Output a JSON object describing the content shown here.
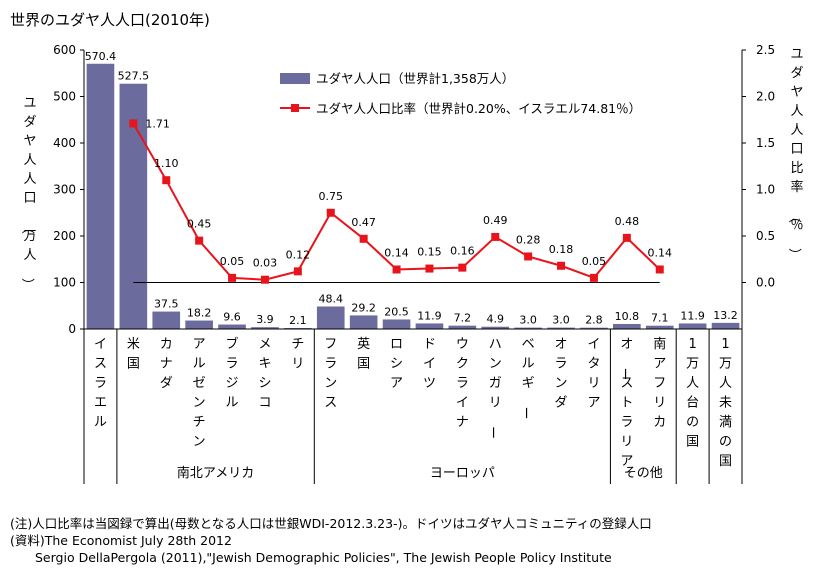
{
  "chart_data": {
    "type": "bar",
    "title": "世界のユダヤ人人口(2010年)",
    "ylabel_left": "ユダヤ人人口（万人）",
    "ylabel_right": "ユダヤ人人口比率（％）",
    "ylim_left": [
      0,
      600
    ],
    "yticks_left": [
      "0",
      "100",
      "200",
      "300",
      "400",
      "500",
      "600"
    ],
    "ylim_right": [
      -0.5,
      2.5
    ],
    "yticks_right": [
      "0.0",
      "0.5",
      "1.0",
      "1.5",
      "2.0",
      "2.5"
    ],
    "categories": [
      "イスラエル",
      "米国",
      "カナダ",
      "アルゼンチン",
      "ブラジル",
      "メキシコ",
      "チリ",
      "フランス",
      "英国",
      "ロシア",
      "ドイツ",
      "ウクライナ",
      "ハンガリー",
      "ベルギー",
      "オランダ",
      "イタリア",
      "オーストラリア",
      "南アフリカ",
      "1万人台の国",
      "1万人未満の国"
    ],
    "groups": [
      {
        "label": "",
        "from": 0,
        "to": 0
      },
      {
        "label": "南北アメリカ",
        "from": 1,
        "to": 6
      },
      {
        "label": "ヨーロッパ",
        "from": 7,
        "to": 15
      },
      {
        "label": "その他",
        "from": 16,
        "to": 17
      },
      {
        "label": "",
        "from": 18,
        "to": 18
      },
      {
        "label": "",
        "from": 19,
        "to": 19
      }
    ],
    "series": [
      {
        "name": "ユダヤ人人口（世界計1,358万人）",
        "type": "bar",
        "axis": "left",
        "color": "#6b6b9e",
        "values": [
          570.4,
          527.5,
          37.5,
          18.2,
          9.6,
          3.9,
          2.1,
          48.4,
          29.2,
          20.5,
          11.9,
          7.2,
          4.9,
          3.0,
          3.0,
          2.8,
          10.8,
          7.1,
          11.9,
          13.2
        ],
        "labels": [
          "570.4",
          "527.5",
          "37.5",
          "18.2",
          "9.6",
          "3.9",
          "2.1",
          "48.4",
          "29.2",
          "20.5",
          "11.9",
          "7.2",
          "4.9",
          "3.0",
          "3.0",
          "2.8",
          "10.8",
          "7.1",
          "11.9",
          "13.2"
        ]
      },
      {
        "name": "ユダヤ人人口比率（世界計0.20%、イスラエル74.81％）",
        "type": "line",
        "axis": "right",
        "color": "#e8141b",
        "values": [
          null,
          1.71,
          1.1,
          0.45,
          0.05,
          0.03,
          0.12,
          0.75,
          0.47,
          0.14,
          0.15,
          0.16,
          0.49,
          0.28,
          0.18,
          0.05,
          0.48,
          0.14,
          null,
          null
        ],
        "labels": [
          "",
          "1.71",
          "1.10",
          "0.45",
          "0.05",
          "0.03",
          "0.12",
          "0.75",
          "0.47",
          "0.14",
          "0.15",
          "0.16",
          "0.49",
          "0.28",
          "0.18",
          "0.05",
          "0.48",
          "0.14",
          "",
          ""
        ]
      }
    ],
    "legend_position": "top-center",
    "grid": false
  },
  "notes": [
    "(注)人口比率は当図録で算出(母数となる人口は世銀WDI-2012.3.23-)。ドイツはユダヤ人コミュニティの登録人口",
    "(資料)The Economist July 28th 2012",
    "　　Sergio DellaPergola (2011),\"Jewish Demographic Policies\", The Jewish People Policy Institute"
  ]
}
